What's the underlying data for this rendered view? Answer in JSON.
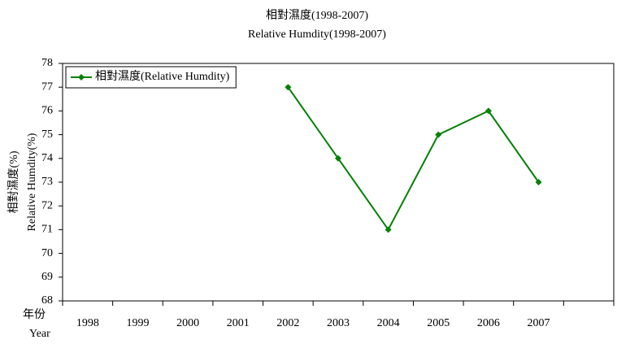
{
  "chart_data": {
    "type": "line",
    "title": "相對濕度(1998-2007)",
    "subtitle": "Relative Humdity(1998-2007)",
    "ylabel": [
      "相對濕度(%)",
      "Relative Humdity(%)"
    ],
    "xlabel": [
      "年份",
      "Year"
    ],
    "categories": [
      "1998",
      "1999",
      "2000",
      "2001",
      "2002",
      "2003",
      "2004",
      "2005",
      "2006",
      "2007",
      null
    ],
    "series": [
      {
        "name": "相對濕度(Relative Humdity)",
        "color": "#008000",
        "values": [
          null,
          null,
          null,
          null,
          77,
          74,
          71,
          75,
          76,
          73,
          null
        ]
      }
    ],
    "ylim": [
      68,
      78
    ],
    "yticks": [
      68,
      69,
      70,
      71,
      72,
      73,
      74,
      75,
      76,
      77,
      78
    ],
    "legend": "upper left"
  }
}
